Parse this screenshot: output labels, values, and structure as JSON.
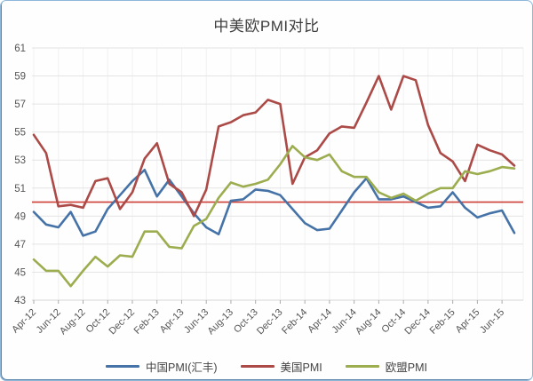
{
  "title": "中美欧PMI对比",
  "colors": {
    "china": "#4572a7",
    "us": "#ab4a47",
    "eu": "#9cad4f",
    "reference_line": "#cc3e36",
    "h_grid": "#e4e4e4",
    "v_grid": "#f1f1f1",
    "baseline": "#d6d6d6",
    "tick": "#ababab",
    "axis_text": "#555555",
    "title_text": "#3d3d3d",
    "frame_border": "#8fb7d9"
  },
  "chart_data": {
    "type": "line",
    "title": "中美欧PMI对比",
    "categories": [
      "Apr-12",
      "May-12",
      "Jun-12",
      "Jul-12",
      "Aug-12",
      "Sep-12",
      "Oct-12",
      "Nov-12",
      "Dec-12",
      "Jan-13",
      "Feb-13",
      "Mar-13",
      "Apr-13",
      "May-13",
      "Jun-13",
      "Jul-13",
      "Aug-13",
      "Sep-13",
      "Oct-13",
      "Nov-13",
      "Dec-13",
      "Jan-14",
      "Feb-14",
      "Mar-14",
      "Apr-14",
      "May-14",
      "Jun-14",
      "Jul-14",
      "Aug-14",
      "Sep-14",
      "Oct-14",
      "Nov-14",
      "Dec-14",
      "Jan-15",
      "Feb-15",
      "Mar-15",
      "Apr-15",
      "May-15",
      "Jun-15",
      "Jul-15"
    ],
    "visible_x_labels": [
      "Apr-12",
      "Jun-12",
      "Aug-12",
      "Oct-12",
      "Dec-12",
      "Feb-13",
      "Apr-13",
      "Jun-13",
      "Aug-13",
      "Oct-13",
      "Dec-13",
      "Feb-14",
      "Apr-14",
      "Jun-14",
      "Aug-14",
      "Oct-14",
      "Dec-14",
      "Feb-15",
      "Apr-15",
      "Jun-15"
    ],
    "ylim": [
      43,
      61
    ],
    "y_ticks": [
      43,
      45,
      47,
      49,
      51,
      53,
      55,
      57,
      59,
      61
    ],
    "reference_line": 50,
    "grid": true,
    "legend_position": "bottom",
    "series": [
      {
        "name": "中国PMI(汇丰)",
        "color": "#4572a7",
        "values": [
          49.3,
          48.4,
          48.2,
          49.3,
          47.6,
          47.9,
          49.5,
          50.5,
          51.5,
          52.3,
          50.4,
          51.6,
          50.4,
          49.2,
          48.2,
          47.7,
          50.1,
          50.2,
          50.9,
          50.8,
          50.5,
          49.5,
          48.5,
          48.0,
          48.1,
          49.4,
          50.7,
          51.7,
          50.2,
          50.2,
          50.4,
          50.0,
          49.6,
          49.7,
          50.7,
          49.6,
          48.9,
          49.2,
          49.4,
          47.8
        ]
      },
      {
        "name": "美国PMI",
        "color": "#ab4a47",
        "values": [
          54.8,
          53.5,
          49.7,
          49.8,
          49.6,
          51.5,
          51.7,
          49.5,
          50.7,
          53.1,
          54.2,
          51.3,
          50.7,
          49.0,
          50.9,
          55.4,
          55.7,
          56.2,
          56.4,
          57.3,
          57.0,
          51.3,
          53.2,
          53.7,
          54.9,
          55.4,
          55.3,
          57.1,
          59.0,
          56.6,
          59.0,
          58.7,
          55.5,
          53.5,
          52.9,
          51.5,
          54.1,
          53.7,
          53.4,
          52.6
        ]
      },
      {
        "name": "欧盟PMI",
        "color": "#9cad4f",
        "values": [
          45.9,
          45.1,
          45.1,
          44.0,
          45.1,
          46.1,
          45.4,
          46.2,
          46.1,
          47.9,
          47.9,
          46.8,
          46.7,
          48.3,
          48.8,
          50.3,
          51.4,
          51.1,
          51.3,
          51.6,
          52.7,
          54.0,
          53.2,
          53.0,
          53.4,
          52.2,
          51.8,
          51.8,
          50.7,
          50.3,
          50.6,
          50.1,
          50.6,
          51.0,
          51.0,
          52.2,
          52.0,
          52.2,
          52.5,
          52.4
        ]
      }
    ]
  }
}
